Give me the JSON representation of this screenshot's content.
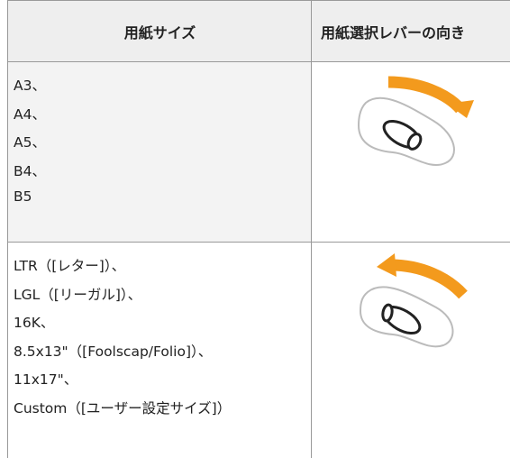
{
  "table": {
    "header": [
      "用紙サイズ",
      "用紙選択レバーの向き"
    ],
    "rows": [
      {
        "sizes": [
          "A3、",
          "A4、",
          "A5、",
          "B4、",
          "B5"
        ]
      },
      {
        "sizes": [
          "LTR（[レター]）、",
          "LGL（[リーガル]）、",
          "16K、",
          "8.5x13\"（[Foolscap/Folio]）、",
          "11x17\"、",
          "Custom（[ユーザー設定サイズ]）"
        ]
      }
    ]
  }
}
